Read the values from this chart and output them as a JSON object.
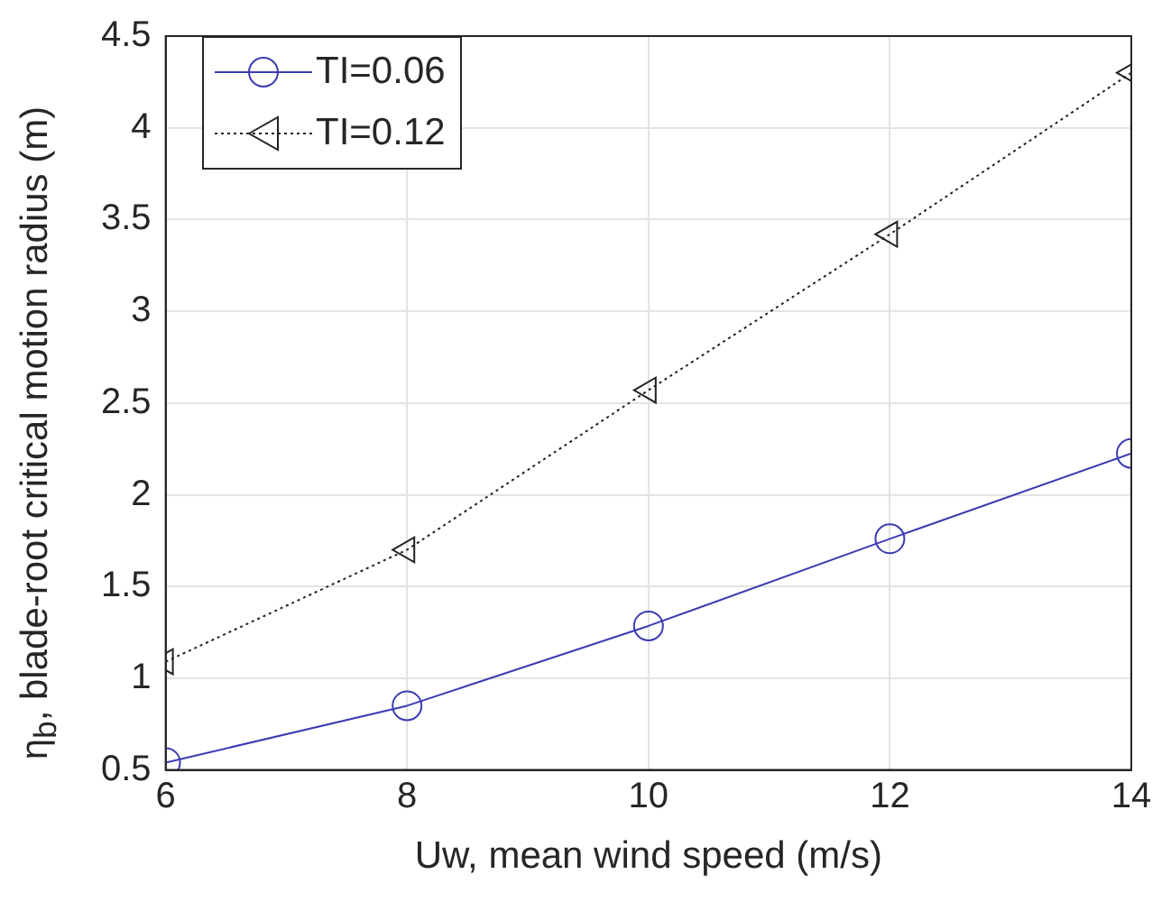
{
  "chart_data": {
    "type": "line",
    "xlabel": "Uw, mean wind speed (m/s)",
    "ylabel": "η$_{b}$, blade-root critical motion radius (m)",
    "x": [
      6,
      8,
      10,
      12,
      14
    ],
    "series": [
      {
        "name": "TI=0.06",
        "color": "#3b3bb3",
        "values": [
          0.54,
          0.85,
          1.285,
          1.76,
          2.225
        ],
        "marker": "circle",
        "line_style": "solid"
      },
      {
        "name": "TI=0.12",
        "color": "#222222",
        "values": [
          1.09,
          1.7,
          2.57,
          3.42,
          4.3
        ],
        "marker": "triangle",
        "line_style": "dotted"
      }
    ],
    "xlim": [
      6,
      14
    ],
    "xticks": [
      6,
      8,
      10,
      12,
      14
    ],
    "ylim": [
      0.5,
      4.5
    ],
    "yticks": [
      0.5,
      1,
      1.5,
      2,
      2.5,
      3,
      3.5,
      4,
      4.5
    ],
    "grid": true,
    "legend": "top left"
  }
}
